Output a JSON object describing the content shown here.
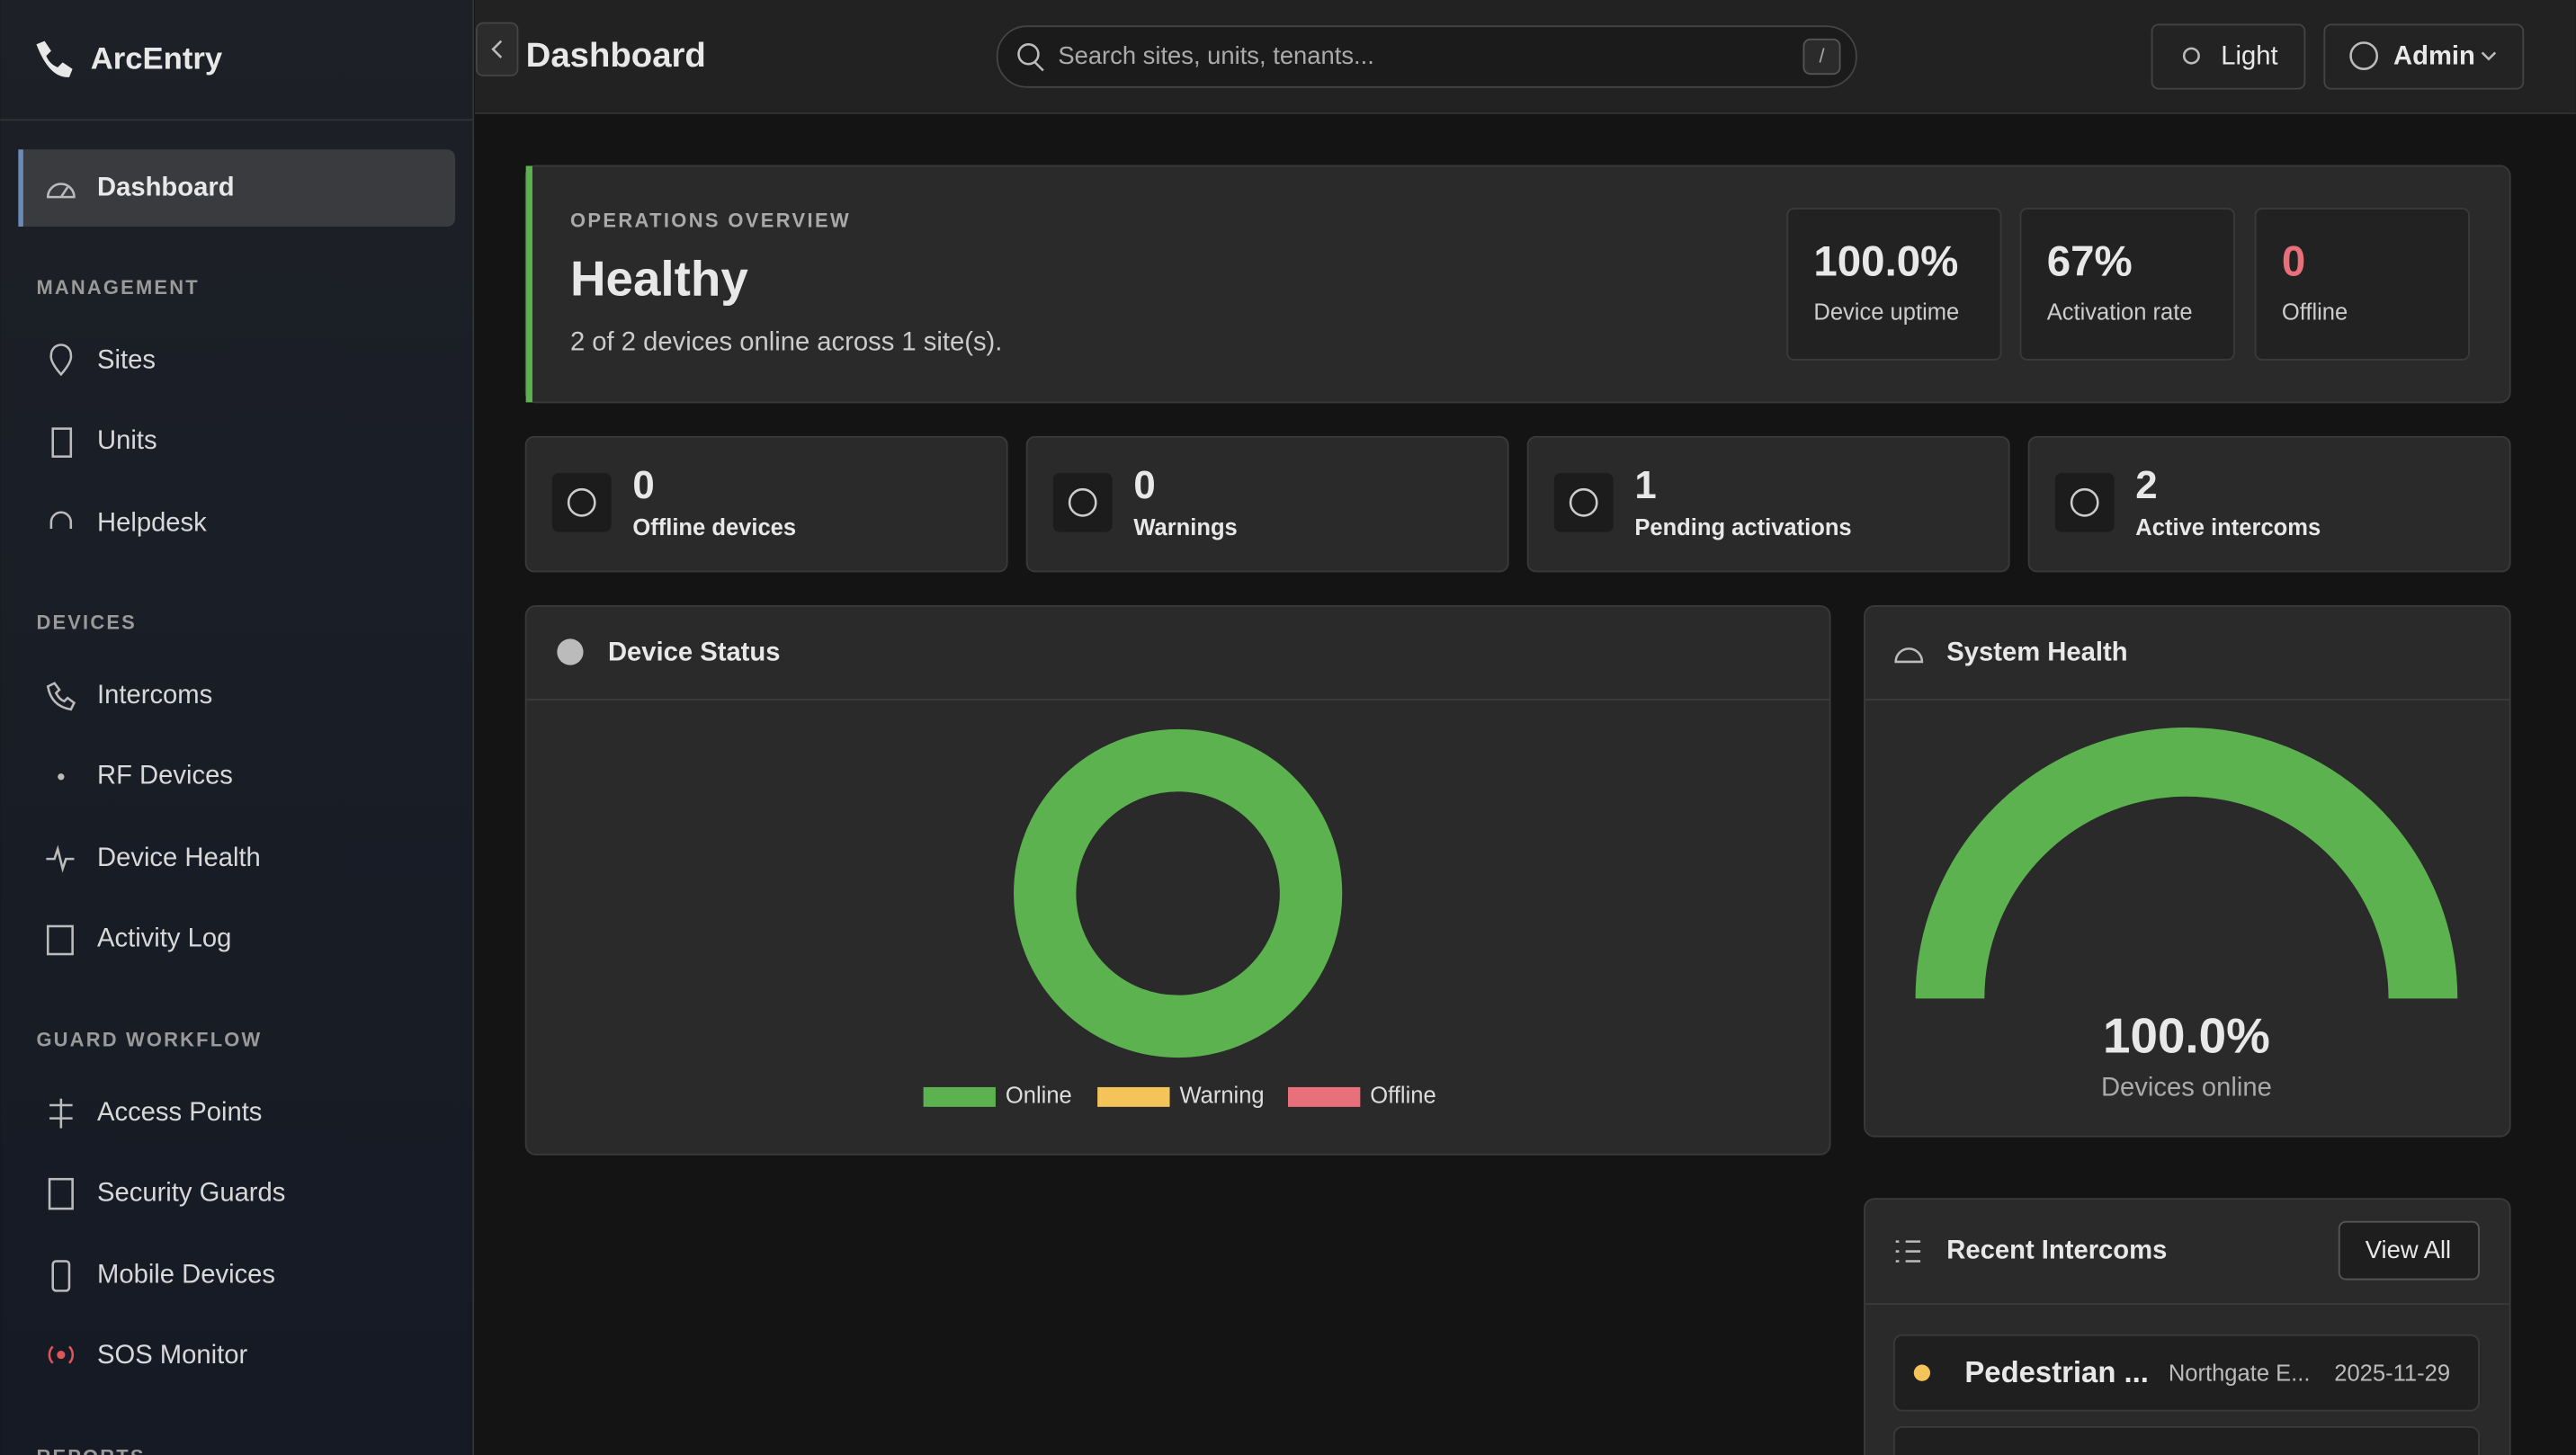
{
  "sidebar": {
    "brand": "ArcEntry",
    "active": "Dashboard",
    "sections": [
      {
        "title": "MANAGEMENT",
        "items": [
          "Sites",
          "Units",
          "Helpdesk"
        ]
      },
      {
        "title": "DEVICES",
        "items": [
          "Intercoms",
          "RF Devices",
          "Device Health",
          "Activity Log"
        ]
      },
      {
        "title": "GUARD WORKFLOW",
        "items": [
          "Access Points",
          "Security Guards",
          "Mobile Devices",
          "SOS Monitor"
        ]
      },
      {
        "title": "REPORTS"
      }
    ]
  },
  "header": {
    "title": "Dashboard",
    "search_placeholder": "Search sites, units, tenants...",
    "search_shortcut": "/",
    "theme_button": "Light",
    "user_button": "Admin"
  },
  "overview": {
    "eyebrow": "OPERATIONS OVERVIEW",
    "status": "Healthy",
    "summary": "2 of 2 devices online across 1 site(s).",
    "metrics": [
      {
        "value": "100.0%",
        "label": "Device uptime"
      },
      {
        "value": "67%",
        "label": "Activation rate"
      },
      {
        "value": "0",
        "label": "Offline"
      }
    ]
  },
  "stats": [
    {
      "value": "0",
      "label": "Offline devices"
    },
    {
      "value": "0",
      "label": "Warnings"
    },
    {
      "value": "1",
      "label": "Pending activations"
    },
    {
      "value": "2",
      "label": "Active intercoms"
    }
  ],
  "device_status": {
    "type": "donut",
    "title": "Device Status",
    "categories": [
      "Online",
      "Warning",
      "Offline"
    ],
    "values": [
      2,
      0,
      0
    ],
    "colors": [
      "#5bb24f",
      "#f4c35a",
      "#e8707a"
    ]
  },
  "system_health": {
    "type": "gauge",
    "title": "System Health",
    "value": 100,
    "value_label": "100.0%",
    "caption": "Devices online",
    "range": [
      0,
      100
    ],
    "color": "#5bb24f"
  },
  "recent_intercoms": {
    "title": "Recent Intercoms",
    "button": "View All",
    "rows": [
      {
        "name": "Pedestrian ...",
        "site": "Northgate E...",
        "date": "2025-11-29"
      }
    ]
  }
}
